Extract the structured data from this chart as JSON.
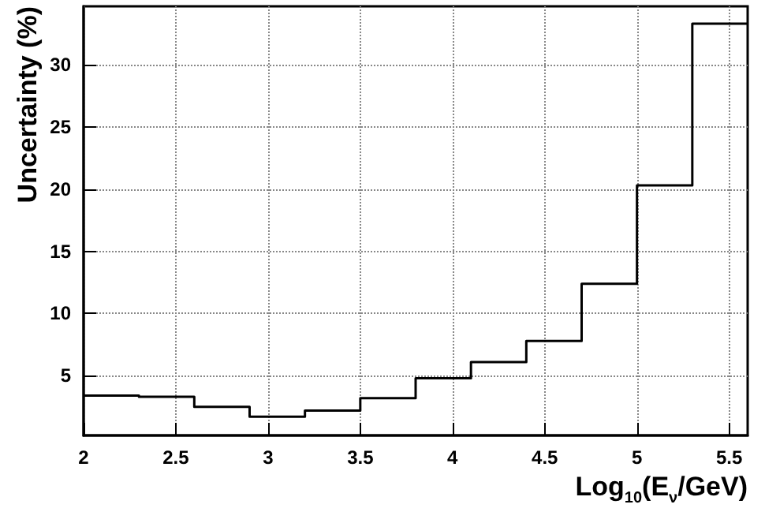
{
  "chart_data": {
    "type": "histogram",
    "xlabel": "Log$_{10}$(E$_{ν}$/GeV)",
    "ylabel": "Uncertainty (%)",
    "bins": [
      2,
      2.3,
      2.6,
      2.9,
      3.2,
      3.5,
      3.8,
      4.1,
      4.4,
      4.7,
      5.0,
      5.3,
      5.6
    ],
    "values": [
      3.4,
      3.3,
      2.5,
      1.7,
      2.2,
      3.2,
      4.8,
      6.1,
      7.8,
      12.4,
      20.3,
      33.3
    ],
    "color": "#000000",
    "xlim": [
      2,
      5.6
    ],
    "xticks": [
      2,
      2.5,
      3,
      3.5,
      4,
      4.5,
      5,
      5.5
    ],
    "ylim": [
      0.2,
      34.7
    ],
    "yticks": [
      5,
      10,
      15,
      20,
      25,
      30
    ],
    "grid": true
  }
}
